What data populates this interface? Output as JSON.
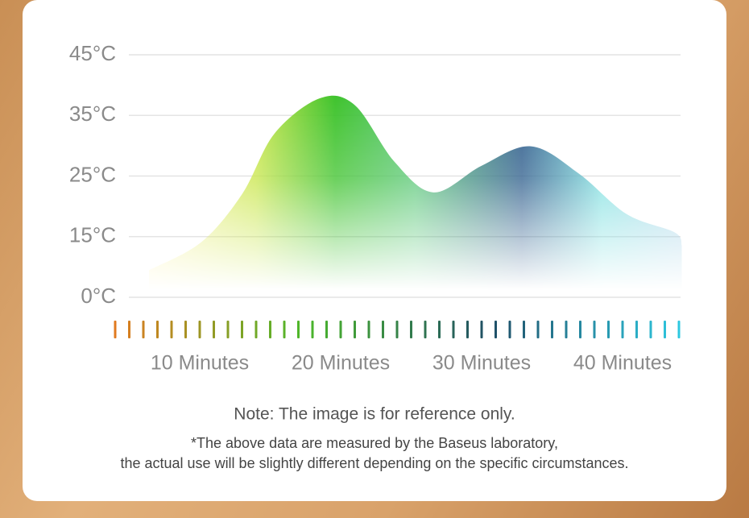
{
  "chart_data": {
    "type": "area",
    "x": [
      6.4,
      10.1,
      13,
      15.3,
      18.5,
      21,
      23.8,
      26.6,
      30,
      33.5,
      36.9,
      40.3,
      43.7,
      44.2
    ],
    "values": [
      6.7,
      13.6,
      22,
      32,
      37.8,
      36.7,
      27.4,
      22.3,
      26.7,
      29.9,
      25.4,
      18.7,
      15.7,
      12.8
    ],
    "xlim": [
      4,
      44.5
    ],
    "xticks": [
      {
        "value": 10,
        "label": "10 Minutes"
      },
      {
        "value": 20,
        "label": "20 Minutes"
      },
      {
        "value": 30,
        "label": "30 Minutes"
      },
      {
        "value": 40,
        "label": "40 Minutes"
      }
    ],
    "ylim": [
      0,
      45
    ],
    "yticks": [
      {
        "value": 0,
        "label": "0°C"
      },
      {
        "value": 15,
        "label": "15°C"
      },
      {
        "value": 25,
        "label": "25°C"
      },
      {
        "value": 35,
        "label": "35°C"
      },
      {
        "value": 45,
        "label": "45°C"
      }
    ],
    "grid": true,
    "note": "Note: The image is for reference only.",
    "footnote": [
      "*The above data are measured by the Baseus laboratory,",
      "the actual use will be slightly different depending on the specific circumstances."
    ]
  }
}
